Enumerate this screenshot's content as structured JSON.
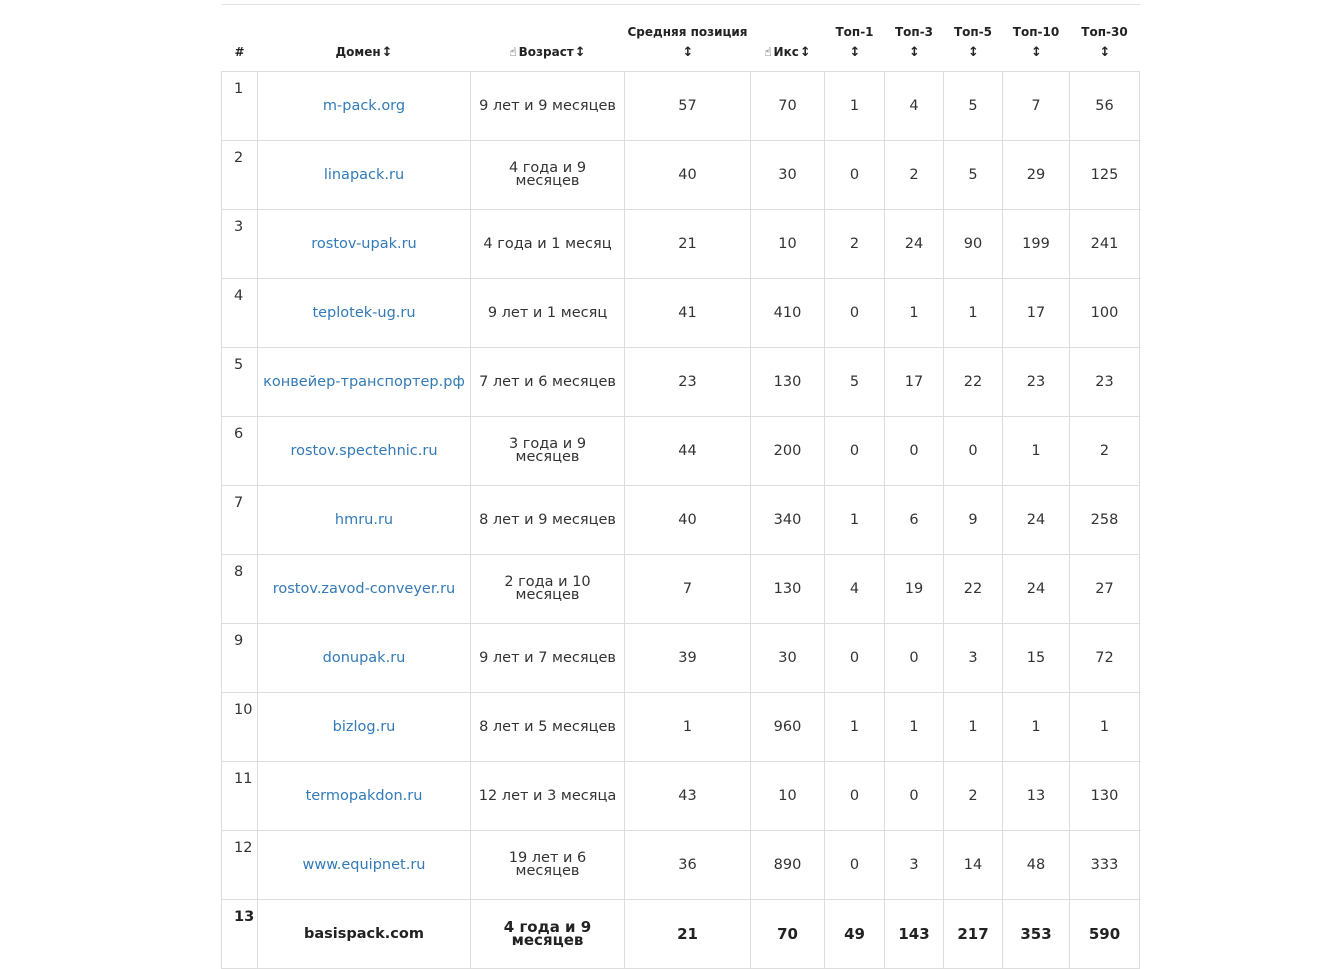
{
  "header": {
    "num": "#",
    "domain": "Домен",
    "age": "Возраст",
    "avg_position": "Средняя позиция",
    "iks": "Икс",
    "top1": "Топ-1",
    "top3": "Топ-3",
    "top5": "Топ-5",
    "top10": "Топ-10",
    "top30": "Топ-30",
    "sort_icon": "↕",
    "hand_icon": "☝"
  },
  "rows": [
    {
      "n": "1",
      "domain": "m-pack.org",
      "age": "9 лет и 9 месяцев",
      "avg": "57",
      "iks": "70",
      "t1": "1",
      "t3": "4",
      "t5": "5",
      "t10": "7",
      "t30": "56"
    },
    {
      "n": "2",
      "domain": "linapack.ru",
      "age": "4 года и 9 месяцев",
      "avg": "40",
      "iks": "30",
      "t1": "0",
      "t3": "2",
      "t5": "5",
      "t10": "29",
      "t30": "125"
    },
    {
      "n": "3",
      "domain": "rostov-upak.ru",
      "age": "4 года и 1 месяц",
      "avg": "21",
      "iks": "10",
      "t1": "2",
      "t3": "24",
      "t5": "90",
      "t10": "199",
      "t30": "241"
    },
    {
      "n": "4",
      "domain": "teplotek-ug.ru",
      "age": "9 лет и 1 месяц",
      "avg": "41",
      "iks": "410",
      "t1": "0",
      "t3": "1",
      "t5": "1",
      "t10": "17",
      "t30": "100"
    },
    {
      "n": "5",
      "domain": "конвейер-транспортер.рф",
      "age": "7 лет и 6 месяцев",
      "avg": "23",
      "iks": "130",
      "t1": "5",
      "t3": "17",
      "t5": "22",
      "t10": "23",
      "t30": "23"
    },
    {
      "n": "6",
      "domain": "rostov.spectehnic.ru",
      "age": "3 года и 9 месяцев",
      "avg": "44",
      "iks": "200",
      "t1": "0",
      "t3": "0",
      "t5": "0",
      "t10": "1",
      "t30": "2"
    },
    {
      "n": "7",
      "domain": "hmru.ru",
      "age": "8 лет и 9 месяцев",
      "avg": "40",
      "iks": "340",
      "t1": "1",
      "t3": "6",
      "t5": "9",
      "t10": "24",
      "t30": "258"
    },
    {
      "n": "8",
      "domain": "rostov.zavod-conveyer.ru",
      "age": "2 года и 10 месяцев",
      "avg": "7",
      "iks": "130",
      "t1": "4",
      "t3": "19",
      "t5": "22",
      "t10": "24",
      "t30": "27"
    },
    {
      "n": "9",
      "domain": "donupak.ru",
      "age": "9 лет и 7 месяцев",
      "avg": "39",
      "iks": "30",
      "t1": "0",
      "t3": "0",
      "t5": "3",
      "t10": "15",
      "t30": "72"
    },
    {
      "n": "10",
      "domain": "bizlog.ru",
      "age": "8 лет и 5 месяцев",
      "avg": "1",
      "iks": "960",
      "t1": "1",
      "t3": "1",
      "t5": "1",
      "t10": "1",
      "t30": "1"
    },
    {
      "n": "11",
      "domain": "termopakdon.ru",
      "age": "12 лет и 3 месяца",
      "avg": "43",
      "iks": "10",
      "t1": "0",
      "t3": "0",
      "t5": "2",
      "t10": "13",
      "t30": "130"
    },
    {
      "n": "12",
      "domain": "www.equipnet.ru",
      "age": "19 лет и 6 месяцев",
      "avg": "36",
      "iks": "890",
      "t1": "0",
      "t3": "3",
      "t5": "14",
      "t10": "48",
      "t30": "333"
    },
    {
      "n": "13",
      "domain": "basispack.com",
      "age": "4 года и 9 месяцев",
      "avg": "21",
      "iks": "70",
      "t1": "49",
      "t3": "143",
      "t5": "217",
      "t10": "353",
      "t30": "590",
      "own": true
    }
  ]
}
